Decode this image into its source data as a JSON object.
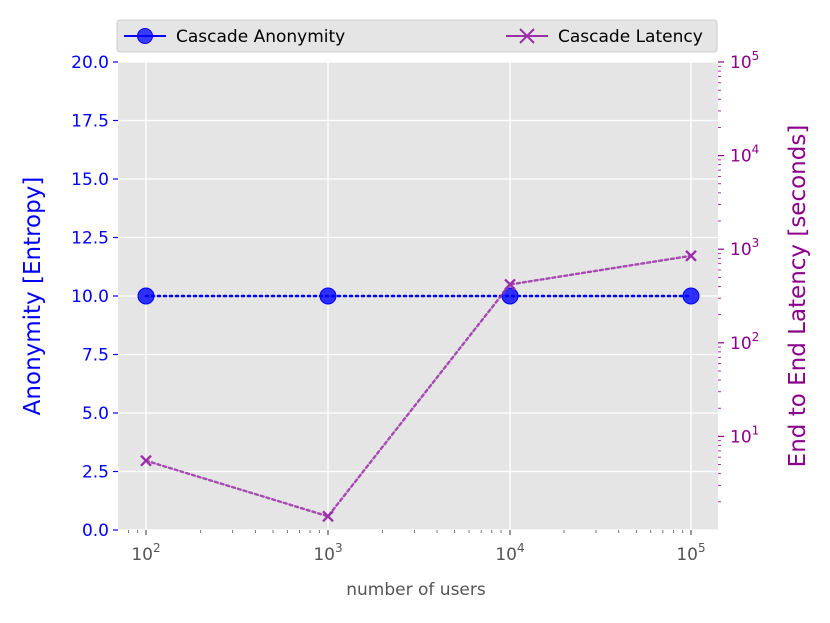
{
  "chart_data": {
    "type": "line",
    "xlabel": "number of users",
    "x": [
      100,
      1000,
      10000,
      100000
    ],
    "x_ticks": [
      {
        "base": "10",
        "exp": "2"
      },
      {
        "base": "10",
        "exp": "3"
      },
      {
        "base": "10",
        "exp": "4"
      },
      {
        "base": "10",
        "exp": "5"
      }
    ],
    "x_scale": "log",
    "grid": true,
    "legend_position": "top",
    "left_axis": {
      "label": "Anonymity [Entropy]",
      "color": "#0000ff",
      "ylim": [
        0,
        20
      ],
      "ticks": [
        "0.0",
        "2.5",
        "5.0",
        "7.5",
        "10.0",
        "12.5",
        "15.0",
        "17.5",
        "20.0"
      ]
    },
    "right_axis": {
      "label": "End to End Latency [seconds]",
      "color": "#8b008b",
      "scale": "log",
      "ylim": [
        1,
        100000
      ],
      "ticks": [
        {
          "base": "10",
          "exp": "1"
        },
        {
          "base": "10",
          "exp": "2"
        },
        {
          "base": "10",
          "exp": "3"
        },
        {
          "base": "10",
          "exp": "4"
        },
        {
          "base": "10",
          "exp": "5"
        }
      ]
    },
    "series": [
      {
        "name": "Cascade Anonymity",
        "axis": "left",
        "color": "#0000ff",
        "marker": "circle",
        "values": [
          10,
          10,
          10,
          10
        ]
      },
      {
        "name": "Cascade Latency",
        "axis": "right",
        "color": "#9b30a8",
        "marker": "x",
        "values": [
          5.5,
          1.4,
          420,
          850
        ]
      }
    ]
  }
}
